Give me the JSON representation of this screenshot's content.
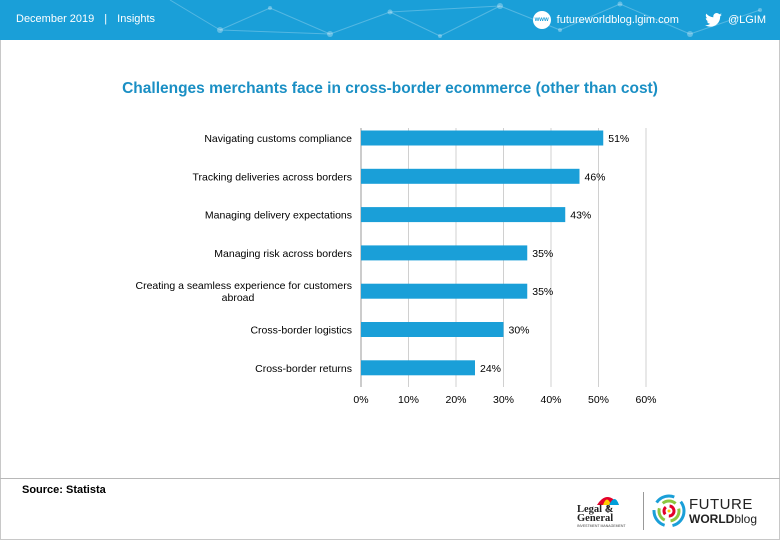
{
  "header": {
    "date": "December 2019",
    "separator": "|",
    "section": "Insights",
    "website": "futureworldblog.lgim.com",
    "www_badge": "www",
    "twitter": "@LGIM",
    "color": "#1a9fd8"
  },
  "chart_data": {
    "type": "bar",
    "orientation": "horizontal",
    "title": "Challenges merchants face in cross-border ecommerce (other than cost)",
    "categories": [
      "Navigating customs compliance",
      "Tracking deliveries across borders",
      "Managing delivery expectations",
      "Managing risk across borders",
      "Creating a seamless experience for customers abroad",
      "Cross-border logistics",
      "Cross-border returns"
    ],
    "values": [
      51,
      46,
      43,
      35,
      35,
      30,
      24
    ],
    "value_labels": [
      "51%",
      "46%",
      "43%",
      "35%",
      "35%",
      "30%",
      "24%"
    ],
    "xlim": [
      0,
      60
    ],
    "x_ticks": [
      "0%",
      "10%",
      "20%",
      "30%",
      "40%",
      "50%",
      "60%"
    ],
    "grid": "vertical",
    "bar_color": "#1a9fd8"
  },
  "footer": {
    "source": "Source: Statista",
    "lg_logo_text": "Legal & General",
    "lg_logo_sub": "INVESTMENT MANAGEMENT",
    "fw_line1": "FUTURE",
    "fw_line2_bold": "WORLD",
    "fw_line2_light": "blog"
  }
}
